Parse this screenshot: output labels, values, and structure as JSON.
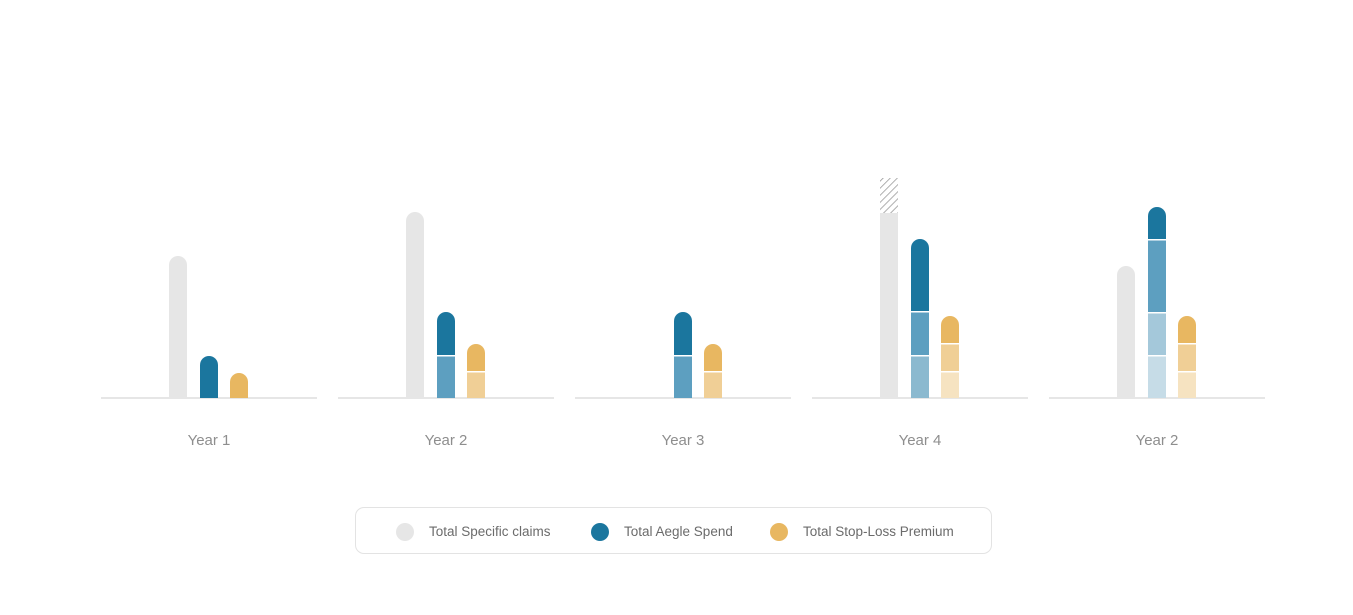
{
  "chart_data": {
    "type": "bar",
    "title": "",
    "xlabel": "",
    "ylabel": "",
    "grid": false,
    "legend_position": "bottom-center",
    "categories": [
      "Year 1",
      "Year 2",
      "Year 3",
      "Year 4",
      "Year 2"
    ],
    "ylim": [
      0,
      230
    ],
    "series": [
      {
        "name": "Total Specific claims",
        "color": "#e6e6e6",
        "values": [
          142,
          186,
          0,
          220,
          132
        ],
        "hatched_top": [
          0,
          0,
          0,
          35,
          0
        ]
      },
      {
        "name": "Total Aegle Spend",
        "color": "#1b769e",
        "values": [
          42,
          86,
          86,
          159,
          191
        ],
        "segments": [
          [
            42
          ],
          [
            43,
            43
          ],
          [
            43,
            43
          ],
          [
            43,
            44,
            72
          ],
          [
            43,
            43,
            73,
            32
          ]
        ],
        "segment_colors": [
          "#c6dce7",
          "#8bb9cf",
          "#5d9fc0",
          "#4a93b8",
          "#1b769e"
        ]
      },
      {
        "name": "Total Stop-Loss Premium",
        "color": "#e8b761",
        "values": [
          25,
          54,
          54,
          82,
          82
        ],
        "segments": [
          [
            25
          ],
          [
            27,
            27
          ],
          [
            27,
            27
          ],
          [
            27,
            28,
            27
          ],
          [
            27,
            28,
            27
          ]
        ],
        "segment_colors": [
          "#f6e3c1",
          "#f0cf96",
          "#e8b761"
        ]
      }
    ]
  },
  "legend": {
    "items": [
      {
        "label": "Total Specific claims",
        "color": "#e6e6e6"
      },
      {
        "label": "Total Aegle Spend",
        "color": "#1b769e"
      },
      {
        "label": "Total Stop-Loss Premium",
        "color": "#e8b761"
      }
    ]
  }
}
